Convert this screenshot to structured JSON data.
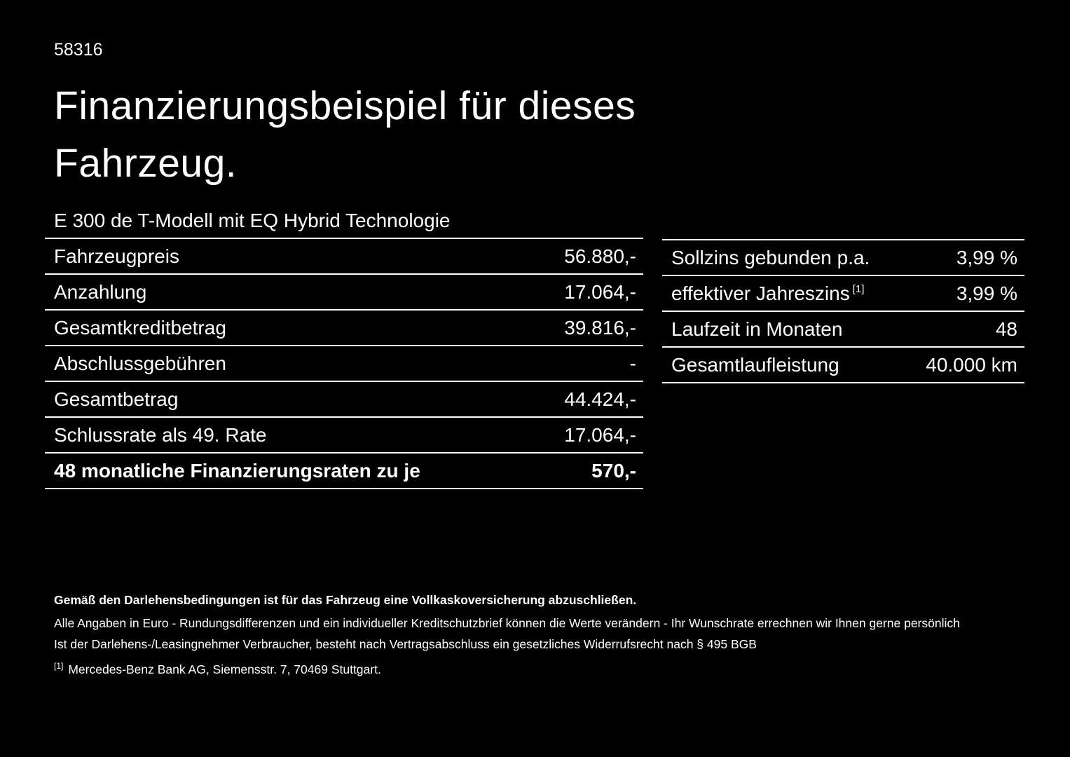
{
  "doc_number": "58316",
  "title": "Finanzierungsbeispiel für dieses Fahrzeug.",
  "model": "E 300 de T-Modell mit EQ Hybrid Technologie",
  "left_table": {
    "rows": [
      {
        "label": "Fahrzeugpreis",
        "value": "56.880,-"
      },
      {
        "label": "Anzahlung",
        "value": "17.064,-"
      },
      {
        "label": "Gesamtkreditbetrag",
        "value": "39.816,-"
      },
      {
        "label": "Abschlussgebühren",
        "value": "-"
      },
      {
        "label": "Gesamtbetrag",
        "value": "44.424,-"
      },
      {
        "label": "Schlussrate als 49. Rate",
        "value": "17.064,-"
      },
      {
        "label": "48 monatliche Finanzierungsraten zu je",
        "value": "570,-"
      }
    ]
  },
  "right_table": {
    "rows": [
      {
        "label": "Sollzins gebunden p.a.",
        "footnote": "",
        "value": "3,99 %"
      },
      {
        "label": "effektiver Jahreszins",
        "footnote": "[1]",
        "value": "3,99 %"
      },
      {
        "label": "Laufzeit in Monaten",
        "footnote": "",
        "value": "48"
      },
      {
        "label": "Gesamtlaufleistung",
        "footnote": "",
        "value": "40.000 km"
      }
    ]
  },
  "footer": {
    "bold_note": "Gemäß den Darlehensbedingungen ist für das Fahrzeug eine Vollkaskoversicherung abzuschließen.",
    "note_1": "Alle Angaben in Euro - Rundungsdifferenzen und ein individueller Kreditschutzbrief können die Werte verändern - Ihr Wunschrate errechnen wir Ihnen gerne persönlich",
    "note_2": "Ist der Darlehens-/Leasingnehmer Verbraucher, besteht nach Vertragsabschluss ein gesetzliches Widerrufsrecht nach § 495 BGB",
    "footnote_marker": "[1]",
    "footnote_text": "Mercedes-Benz Bank AG, Siemensstr. 7, 70469 Stuttgart."
  },
  "colors": {
    "background": "#000000",
    "text": "#ffffff",
    "rule": "#ffffff"
  }
}
